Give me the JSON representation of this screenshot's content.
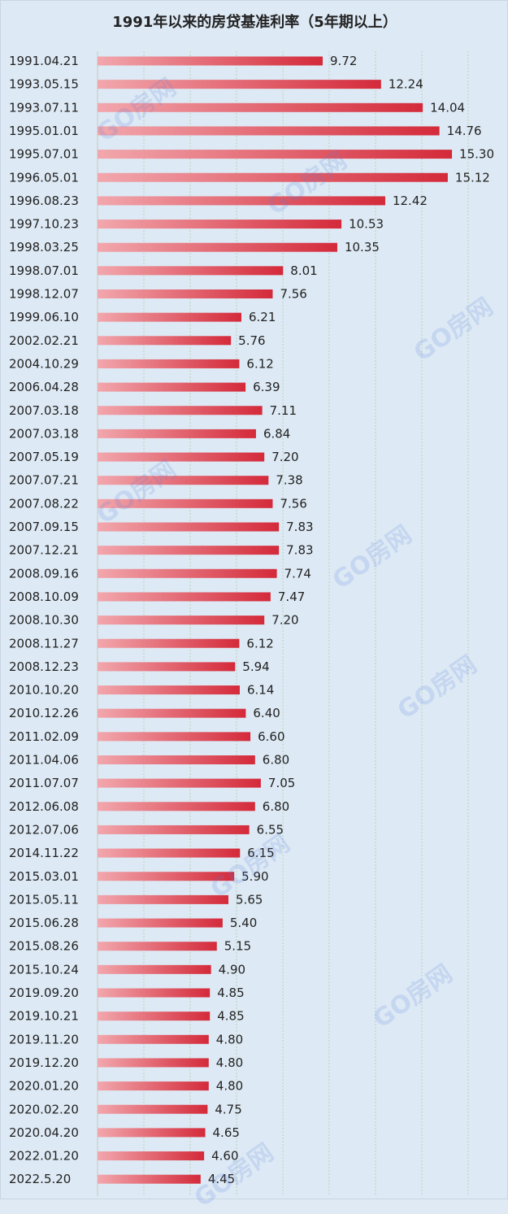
{
  "chart_data": {
    "type": "bar",
    "orientation": "horizontal",
    "title": "1991年以来的房贷基准利率（5年期以上）",
    "xlabel": "",
    "ylabel": "",
    "xlim": [
      0,
      18
    ],
    "grid": true,
    "legend": "none",
    "categories": [
      "1991.04.21",
      "1993.05.15",
      "1993.07.11",
      "1995.01.01",
      "1995.07.01",
      "1996.05.01",
      "1996.08.23",
      "1997.10.23",
      "1998.03.25",
      "1998.07.01",
      "1998.12.07",
      "1999.06.10",
      "2002.02.21",
      "2004.10.29",
      "2006.04.28",
      "2007.03.18",
      "2007.03.18",
      "2007.05.19",
      "2007.07.21",
      "2007.08.22",
      "2007.09.15",
      "2007.12.21",
      "2008.09.16",
      "2008.10.09",
      "2008.10.30",
      "2008.11.27",
      "2008.12.23",
      "2010.10.20",
      "2010.12.26",
      "2011.02.09",
      "2011.04.06",
      "2011.07.07",
      "2012.06.08",
      "2012.07.06",
      "2014.11.22",
      "2015.03.01",
      "2015.05.11",
      "2015.06.28",
      "2015.08.26",
      "2015.10.24",
      "2019.09.20",
      "2019.10.21",
      "2019.11.20",
      "2019.12.20",
      "2020.01.20",
      "2020.02.20",
      "2020.04.20",
      "2022.01.20",
      "2022.5.20"
    ],
    "values": [
      9.72,
      12.24,
      14.04,
      14.76,
      15.3,
      15.12,
      12.42,
      10.53,
      10.35,
      8.01,
      7.56,
      6.21,
      5.76,
      6.12,
      6.39,
      7.11,
      6.84,
      7.2,
      7.38,
      7.56,
      7.83,
      7.83,
      7.74,
      7.47,
      7.2,
      6.12,
      5.94,
      6.14,
      6.4,
      6.6,
      6.8,
      7.05,
      6.8,
      6.55,
      6.15,
      5.9,
      5.65,
      5.4,
      5.15,
      4.9,
      4.85,
      4.85,
      4.8,
      4.8,
      4.8,
      4.75,
      4.65,
      4.6,
      4.45
    ],
    "value_labels": [
      "9.72",
      "12.24",
      "14.04",
      "14.76",
      "15.30",
      "15.12",
      "12.42",
      "10.53",
      "10.35",
      "8.01",
      "7.56",
      "6.21",
      "5.76",
      "6.12",
      "6.39",
      "7.11",
      "6.84",
      "7.20",
      "7.38",
      "7.56",
      "7.83",
      "7.83",
      "7.74",
      "7.47",
      "7.20",
      "6.12",
      "5.94",
      "6.14",
      "6.40",
      "6.60",
      "6.80",
      "7.05",
      "6.80",
      "6.55",
      "6.15",
      "5.90",
      "5.65",
      "5.40",
      "5.15",
      "4.90",
      "4.85",
      "4.85",
      "4.80",
      "4.80",
      "4.80",
      "4.75",
      "4.65",
      "4.60",
      "4.45"
    ],
    "colors": {
      "bar_start": "#f2a7ad",
      "bar_end": "#d42a3a",
      "grid": "#b9d2b9",
      "background": "#dde9f4"
    }
  },
  "watermark": "GO房网"
}
